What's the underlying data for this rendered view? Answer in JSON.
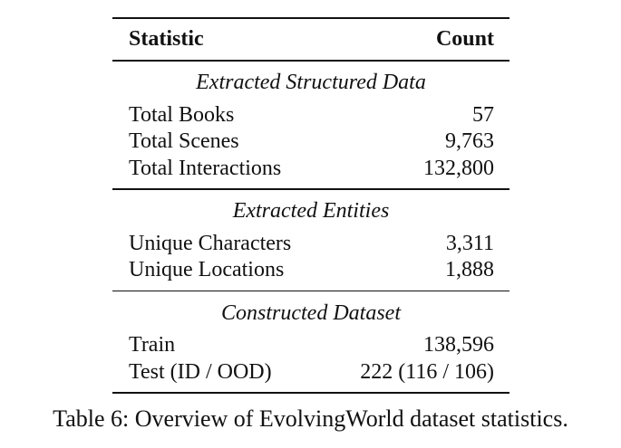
{
  "table": {
    "header": [
      "Statistic",
      "Count"
    ],
    "sections": [
      {
        "title": "Extracted Structured Data",
        "rows": [
          [
            "Total Books",
            "57"
          ],
          [
            "Total Scenes",
            "9,763"
          ],
          [
            "Total Interactions",
            "132,800"
          ]
        ]
      },
      {
        "title": "Extracted Entities",
        "rows": [
          [
            "Unique Characters",
            "3,311"
          ],
          [
            "Unique Locations",
            "1,888"
          ]
        ]
      },
      {
        "title": "Constructed Dataset",
        "rows": [
          [
            "Train",
            "138,596"
          ],
          [
            "Test (ID / OOD)",
            "222 (116 / 106)"
          ]
        ]
      }
    ]
  },
  "caption": "Table 6: Overview of EvolvingWorld dataset statistics."
}
